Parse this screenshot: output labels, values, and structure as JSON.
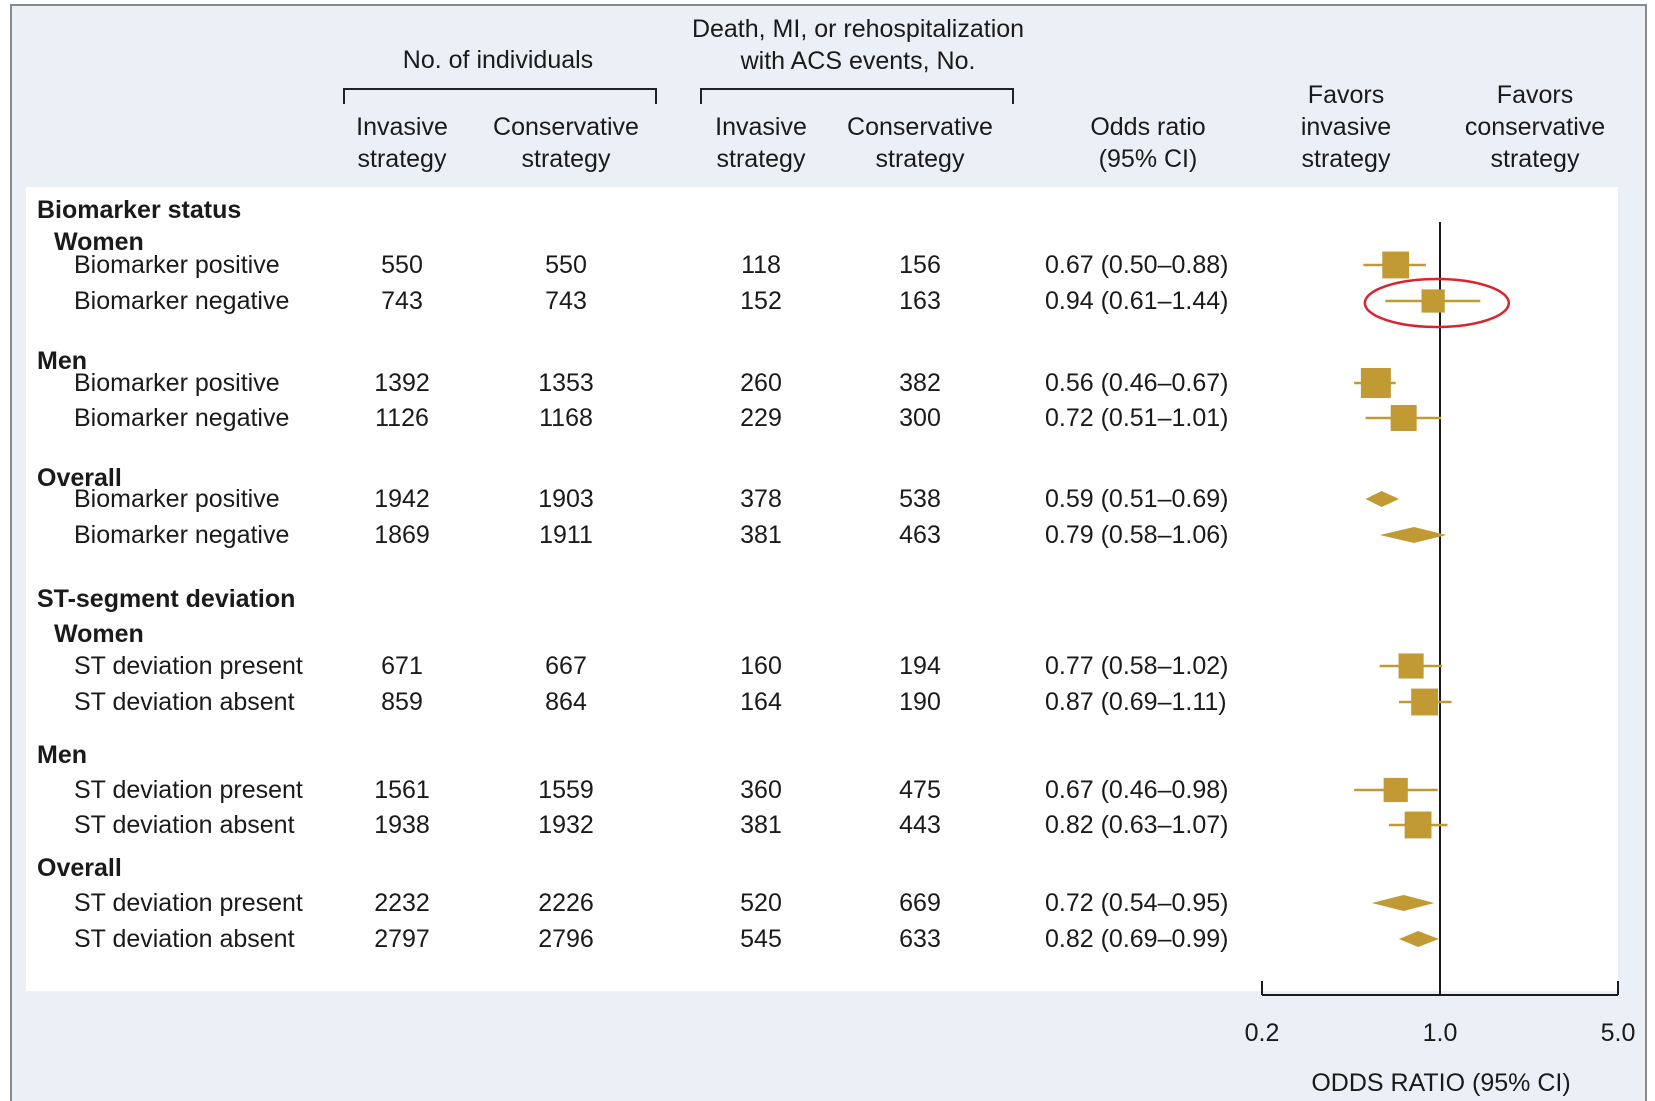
{
  "header": {
    "no_individuals": "No. of individuals",
    "events": "Death, MI, or rehospitalization with ACS events, No.",
    "events_line1": "Death, MI, or rehospitalization",
    "events_line2": "with ACS events, No.",
    "invasive_l1": "Invasive",
    "invasive_l2": "strategy",
    "conservative_l1": "Conservative",
    "conservative_l2": "strategy",
    "odds_l1": "Odds ratio",
    "odds_l2": "(95% CI)",
    "fav_inv_l1": "Favors",
    "fav_inv_l2": "invasive",
    "fav_inv_l3": "strategy",
    "fav_con_l1": "Favors",
    "fav_con_l2": "conservative",
    "fav_con_l3": "strategy"
  },
  "sections": [
    {
      "title": "Biomarker status"
    },
    {
      "title": "ST-segment deviation"
    }
  ],
  "groups": [
    "Women",
    "Men",
    "Overall",
    "Women",
    "Men",
    "Overall"
  ],
  "rows": [
    {
      "label": "Biomarker positive",
      "inv_n": "550",
      "con_n": "550",
      "inv_e": "118",
      "con_e": "156",
      "or": "0.67 (0.50–0.88)"
    },
    {
      "label": "Biomarker negative",
      "inv_n": "743",
      "con_n": "743",
      "inv_e": "152",
      "con_e": "163",
      "or": "0.94 (0.61–1.44)"
    },
    {
      "label": "Biomarker positive",
      "inv_n": "1392",
      "con_n": "1353",
      "inv_e": "260",
      "con_e": "382",
      "or": "0.56 (0.46–0.67)"
    },
    {
      "label": "Biomarker negative",
      "inv_n": "1126",
      "con_n": "1168",
      "inv_e": "229",
      "con_e": "300",
      "or": "0.72 (0.51–1.01)"
    },
    {
      "label": "Biomarker positive",
      "inv_n": "1942",
      "con_n": "1903",
      "inv_e": "378",
      "con_e": "538",
      "or": "0.59 (0.51–0.69)"
    },
    {
      "label": "Biomarker negative",
      "inv_n": "1869",
      "con_n": "1911",
      "inv_e": "381",
      "con_e": "463",
      "or": "0.79 (0.58–1.06)"
    },
    {
      "label": "ST deviation present",
      "inv_n": "671",
      "con_n": "667",
      "inv_e": "160",
      "con_e": "194",
      "or": "0.77 (0.58–1.02)"
    },
    {
      "label": "ST deviation absent",
      "inv_n": "859",
      "con_n": "864",
      "inv_e": "164",
      "con_e": "190",
      "or": "0.87 (0.69–1.11)"
    },
    {
      "label": "ST deviation present",
      "inv_n": "1561",
      "con_n": "1559",
      "inv_e": "360",
      "con_e": "475",
      "or": "0.67 (0.46–0.98)"
    },
    {
      "label": "ST deviation absent",
      "inv_n": "1938",
      "con_n": "1932",
      "inv_e": "381",
      "con_e": "443",
      "or": "0.82 (0.63–1.07)"
    },
    {
      "label": "ST deviation present",
      "inv_n": "2232",
      "con_n": "2226",
      "inv_e": "520",
      "con_e": "669",
      "or": "0.72 (0.54–0.95)"
    },
    {
      "label": "ST deviation absent",
      "inv_n": "2797",
      "con_n": "2796",
      "inv_e": "545",
      "con_e": "633",
      "or": "0.82 (0.69–0.99)"
    }
  ],
  "axis": {
    "tick_labels": [
      "0.2",
      "1.0",
      "5.0"
    ],
    "label": "ODDS RATIO (95% CI)"
  },
  "colors": {
    "marker": "#c19a34",
    "highlight": "#d9232e",
    "background": "#eaf0f5"
  },
  "chart_data": {
    "type": "forest",
    "xlabel": "ODDS RATIO (95% CI)",
    "xscale": "log",
    "xlim": [
      0.2,
      5.0
    ],
    "xticks": [
      0.2,
      1.0,
      5.0
    ],
    "reference_line": 1.0,
    "series": [
      {
        "group": "Biomarker status / Women",
        "label": "Biomarker positive",
        "or": 0.67,
        "lo": 0.5,
        "hi": 0.88,
        "marker": "square",
        "size": 0.8
      },
      {
        "group": "Biomarker status / Women",
        "label": "Biomarker negative",
        "or": 0.94,
        "lo": 0.61,
        "hi": 1.44,
        "marker": "square",
        "size": 0.6,
        "highlighted": true
      },
      {
        "group": "Biomarker status / Men",
        "label": "Biomarker positive",
        "or": 0.56,
        "lo": 0.46,
        "hi": 0.67,
        "marker": "square",
        "size": 1.0
      },
      {
        "group": "Biomarker status / Men",
        "label": "Biomarker negative",
        "or": 0.72,
        "lo": 0.51,
        "hi": 1.01,
        "marker": "square",
        "size": 0.75
      },
      {
        "group": "Biomarker status / Overall",
        "label": "Biomarker positive",
        "or": 0.59,
        "lo": 0.51,
        "hi": 0.69,
        "marker": "diamond"
      },
      {
        "group": "Biomarker status / Overall",
        "label": "Biomarker negative",
        "or": 0.79,
        "lo": 0.58,
        "hi": 1.06,
        "marker": "diamond"
      },
      {
        "group": "ST-segment deviation / Women",
        "label": "ST deviation present",
        "or": 0.77,
        "lo": 0.58,
        "hi": 1.02,
        "marker": "square",
        "size": 0.7
      },
      {
        "group": "ST-segment deviation / Women",
        "label": "ST deviation absent",
        "or": 0.87,
        "lo": 0.69,
        "hi": 1.11,
        "marker": "square",
        "size": 0.8
      },
      {
        "group": "ST-segment deviation / Men",
        "label": "ST deviation present",
        "or": 0.67,
        "lo": 0.46,
        "hi": 0.98,
        "marker": "square",
        "size": 0.65
      },
      {
        "group": "ST-segment deviation / Men",
        "label": "ST deviation absent",
        "or": 0.82,
        "lo": 0.63,
        "hi": 1.07,
        "marker": "square",
        "size": 0.8
      },
      {
        "group": "ST-segment deviation / Overall",
        "label": "ST deviation present",
        "or": 0.72,
        "lo": 0.54,
        "hi": 0.95,
        "marker": "diamond"
      },
      {
        "group": "ST-segment deviation / Overall",
        "label": "ST deviation absent",
        "or": 0.82,
        "lo": 0.69,
        "hi": 0.99,
        "marker": "diamond"
      }
    ]
  }
}
